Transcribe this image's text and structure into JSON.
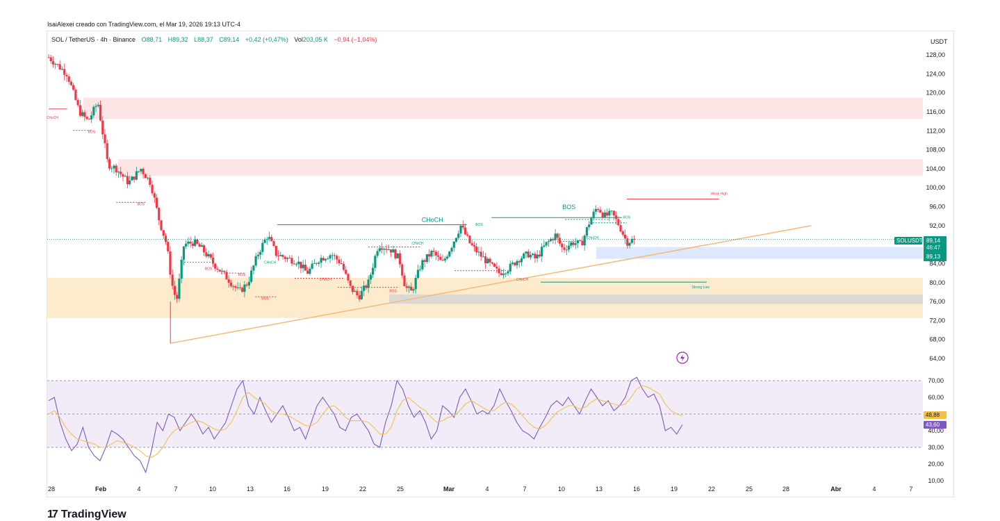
{
  "header": {
    "credit": "IsaiAlexei creado con TradingView.com, el Mar 19, 2026 19:13 UTC-4"
  },
  "symbol_bar": {
    "symbol": "SOL / TetherUS · 4h · Binance",
    "open": "O88,71",
    "high": "H89,32",
    "low": "L88,37",
    "close": "C89,14",
    "change": "+0,42 (+0,47%)",
    "volume_label": "Vol",
    "volume": "203,05 K",
    "volume_change": "−0,94 (−1,04%)"
  },
  "axis": {
    "unit": "USDT"
  },
  "price_tags": {
    "symbol": "SOLUSDT",
    "price": "89,14",
    "countdown": "46:47",
    "second": "89,13"
  },
  "rsi_tags": {
    "ma": "48,88",
    "rsi": "43,60"
  },
  "footer": {
    "logo_mark": "17",
    "logo_text": "TradingView"
  },
  "colors": {
    "up": "#089981",
    "down": "#f23645",
    "trendline": "#f7b877",
    "rsi": "#7e57c2",
    "rsi_ma": "#f5c04a",
    "supply_zone": "#fde0e0",
    "demand_zone": "#fde8c4",
    "blue_zone": "#d6e4fb",
    "gray_zone": "#d6d6d6"
  },
  "icons": [
    "lightning-icon",
    "tradingview-logo-icon"
  ],
  "chart_data": [
    {
      "type": "candlestick",
      "title": "",
      "xlabel": "",
      "ylabel": "USDT",
      "ylim": [
        62,
        130
      ],
      "grid": false,
      "x_ticks": [
        "28",
        "Feb",
        "4",
        "7",
        "10",
        "13",
        "16",
        "19",
        "22",
        "25",
        "Mar",
        "4",
        "7",
        "10",
        "13",
        "16",
        "19",
        "22",
        "25",
        "28",
        "Abr",
        "4",
        "7"
      ],
      "y_ticks": [
        "128,00",
        "124,00",
        "120,00",
        "116,00",
        "112,00",
        "108,00",
        "104,00",
        "100,00",
        "96,00",
        "92,00",
        "88,00",
        "84,00",
        "80,00",
        "76,00",
        "72,00",
        "68,00",
        "64,00"
      ],
      "last_price": 89.14,
      "close_path": [
        {
          "x": 0,
          "y": 127.5
        },
        {
          "x": 1.5,
          "y": 124
        },
        {
          "x": 2.5,
          "y": 116
        },
        {
          "x": 3.2,
          "y": 114
        },
        {
          "x": 4.0,
          "y": 118
        },
        {
          "x": 4.8,
          "y": 105
        },
        {
          "x": 5.5,
          "y": 104
        },
        {
          "x": 6.5,
          "y": 101
        },
        {
          "x": 7.5,
          "y": 104
        },
        {
          "x": 8.3,
          "y": 101
        },
        {
          "x": 9.0,
          "y": 93
        },
        {
          "x": 9.6,
          "y": 88
        },
        {
          "x": 10.0,
          "y": 80
        },
        {
          "x": 10.4,
          "y": 76
        },
        {
          "x": 11.0,
          "y": 88
        },
        {
          "x": 11.8,
          "y": 88.5
        },
        {
          "x": 12.5,
          "y": 87
        },
        {
          "x": 13.4,
          "y": 84
        },
        {
          "x": 14.5,
          "y": 81
        },
        {
          "x": 15.5,
          "y": 78
        },
        {
          "x": 16.2,
          "y": 80
        },
        {
          "x": 17.0,
          "y": 86
        },
        {
          "x": 17.8,
          "y": 90
        },
        {
          "x": 18.5,
          "y": 86
        },
        {
          "x": 19.5,
          "y": 85
        },
        {
          "x": 20.2,
          "y": 84.5
        },
        {
          "x": 21.0,
          "y": 82
        },
        {
          "x": 22.0,
          "y": 85
        },
        {
          "x": 23.0,
          "y": 86
        },
        {
          "x": 23.8,
          "y": 84
        },
        {
          "x": 24.5,
          "y": 79
        },
        {
          "x": 25.2,
          "y": 77
        },
        {
          "x": 26.0,
          "y": 80
        },
        {
          "x": 26.8,
          "y": 88
        },
        {
          "x": 27.8,
          "y": 87
        },
        {
          "x": 28.5,
          "y": 85
        },
        {
          "x": 29.0,
          "y": 79
        },
        {
          "x": 29.5,
          "y": 78
        },
        {
          "x": 30.3,
          "y": 84
        },
        {
          "x": 31.2,
          "y": 86.5
        },
        {
          "x": 32.0,
          "y": 84
        },
        {
          "x": 32.8,
          "y": 88
        },
        {
          "x": 33.5,
          "y": 92
        },
        {
          "x": 34.3,
          "y": 88
        },
        {
          "x": 35.0,
          "y": 86
        },
        {
          "x": 35.8,
          "y": 84
        },
        {
          "x": 36.6,
          "y": 82
        },
        {
          "x": 37.4,
          "y": 83
        },
        {
          "x": 38.2,
          "y": 85
        },
        {
          "x": 39.0,
          "y": 86
        },
        {
          "x": 39.6,
          "y": 85
        },
        {
          "x": 40.4,
          "y": 88
        },
        {
          "x": 41.2,
          "y": 90
        },
        {
          "x": 41.8,
          "y": 87
        },
        {
          "x": 42.6,
          "y": 88.5
        },
        {
          "x": 43.3,
          "y": 88
        },
        {
          "x": 44.0,
          "y": 93
        },
        {
          "x": 44.6,
          "y": 96
        },
        {
          "x": 45.2,
          "y": 94
        },
        {
          "x": 45.8,
          "y": 94.5
        },
        {
          "x": 46.4,
          "y": 92
        },
        {
          "x": 47.0,
          "y": 88.5
        },
        {
          "x": 47.6,
          "y": 89.14
        }
      ],
      "zones": [
        {
          "kind": "supply",
          "from": 114.5,
          "to": 119
        },
        {
          "kind": "supply",
          "from": 102.5,
          "to": 106
        },
        {
          "kind": "blue",
          "from": 85,
          "to": 87.5
        },
        {
          "kind": "demand",
          "from": 72.5,
          "to": 81
        },
        {
          "kind": "gray",
          "from": 75.5,
          "to": 77.5
        }
      ],
      "annotations": [
        {
          "text": "CHoCH",
          "x": 0.3,
          "y": 114.5,
          "color": "down"
        },
        {
          "text": "BOS",
          "x": 3.5,
          "y": 111.5,
          "color": "down"
        },
        {
          "text": "BOS",
          "x": 7.5,
          "y": 96.3,
          "color": "down"
        },
        {
          "text": "BOS",
          "x": 13.0,
          "y": 82.7,
          "color": "down"
        },
        {
          "text": "BOS",
          "x": 15.7,
          "y": 81.4,
          "color": "down"
        },
        {
          "text": "CHoCH",
          "x": 18.0,
          "y": 84.0,
          "color": "up"
        },
        {
          "text": "BOS",
          "x": 17.6,
          "y": 76.4,
          "color": "down"
        },
        {
          "text": "CHoCH",
          "x": 22.5,
          "y": 80.4,
          "color": "down"
        },
        {
          "text": "BOS",
          "x": 28.0,
          "y": 78.0,
          "color": "down"
        },
        {
          "text": "CHoCH",
          "x": 31.2,
          "y": 92.8,
          "color": "up"
        },
        {
          "text": "CHoCH",
          "x": 30.0,
          "y": 88.0,
          "color": "up"
        },
        {
          "text": "BOS",
          "x": 35.0,
          "y": 92.0,
          "color": "up"
        },
        {
          "text": "CHoCH",
          "x": 38.5,
          "y": 80.4,
          "color": "down"
        },
        {
          "text": "BOS",
          "x": 42.3,
          "y": 95.5,
          "color": "up"
        },
        {
          "text": "CHoCH",
          "x": 44.2,
          "y": 89.2,
          "color": "up"
        },
        {
          "text": "BOS",
          "x": 47.0,
          "y": 93.5,
          "color": "up"
        },
        {
          "text": "Weak High",
          "x": 54.5,
          "y": 98.5,
          "color": "down"
        },
        {
          "text": "Strong Low",
          "x": 53.0,
          "y": 78.8,
          "color": "up"
        }
      ],
      "trendline": {
        "from": {
          "x": 9.9,
          "y": 67.2
        },
        "to": {
          "x": 62.0,
          "y": 92.0
        }
      }
    },
    {
      "type": "line",
      "title": "",
      "xlabel": "",
      "ylabel": "",
      "ylim": [
        10,
        72
      ],
      "band": [
        30,
        70
      ],
      "grid": false,
      "y_ticks": [
        "70,00",
        "60,00",
        "50,00",
        "40,00",
        "30,00",
        "20,00",
        "10,00"
      ],
      "series": [
        {
          "name": "",
          "role": "rsi",
          "values": [
            58,
            60,
            45,
            35,
            28,
            32,
            42,
            30,
            25,
            22,
            30,
            40,
            38,
            35,
            30,
            25,
            22,
            15,
            28,
            45,
            40,
            50,
            48,
            40,
            45,
            50,
            45,
            38,
            42,
            35,
            40,
            45,
            55,
            65,
            70,
            55,
            50,
            60,
            52,
            45,
            50,
            55,
            48,
            40,
            42,
            35,
            45,
            55,
            60,
            55,
            50,
            42,
            40,
            48,
            50,
            45,
            40,
            32,
            30,
            45,
            55,
            70,
            65,
            55,
            48,
            52,
            45,
            35,
            40,
            55,
            52,
            48,
            60,
            65,
            58,
            50,
            52,
            50,
            55,
            65,
            58,
            52,
            45,
            40,
            38,
            35,
            42,
            48,
            55,
            58,
            55,
            60,
            55,
            50,
            58,
            65,
            60,
            55,
            58,
            52,
            55,
            60,
            70,
            72,
            65,
            60,
            62,
            55,
            40,
            42,
            38,
            43.6
          ]
        },
        {
          "name": "",
          "role": "ma",
          "values": [
            50,
            52,
            48,
            42,
            38,
            35,
            34,
            33,
            32,
            30,
            30,
            32,
            34,
            33,
            32,
            30,
            28,
            25,
            24,
            26,
            30,
            36,
            40,
            42,
            43,
            45,
            46,
            45,
            43,
            41,
            40,
            41,
            45,
            52,
            60,
            63,
            60,
            58,
            56,
            52,
            50,
            50,
            49,
            47,
            45,
            43,
            43,
            45,
            50,
            54,
            55,
            52,
            48,
            46,
            46,
            46,
            45,
            42,
            38,
            38,
            42,
            52,
            58,
            60,
            57,
            54,
            52,
            48,
            45,
            46,
            48,
            49,
            52,
            56,
            58,
            56,
            54,
            52,
            52,
            55,
            57,
            56,
            53,
            49,
            45,
            42,
            41,
            43,
            47,
            51,
            53,
            55,
            55,
            53,
            54,
            57,
            59,
            58,
            57,
            56,
            55,
            56,
            60,
            65,
            67,
            66,
            64,
            62,
            56,
            52,
            50,
            48.88
          ]
        }
      ]
    }
  ]
}
